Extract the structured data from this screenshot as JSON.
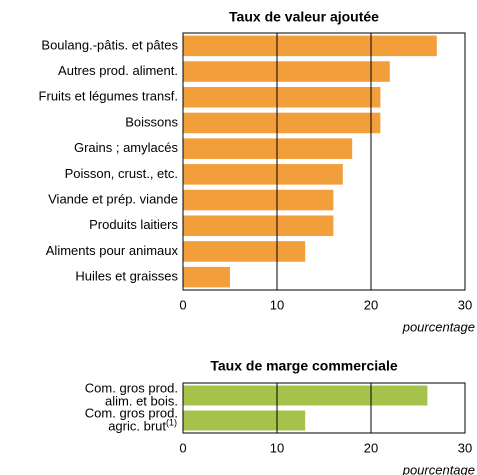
{
  "chart_data": [
    {
      "type": "bar",
      "orientation": "horizontal",
      "title": "Taux de valeur ajoutée",
      "categories": [
        "Boulang.-pâtis. et pâtes",
        "Autres prod. aliment.",
        "Fruits et légumes transf.",
        "Boissons",
        "Grains ; amylacés",
        "Poisson, crust., etc.",
        "Viande et prép. viande",
        "Produits laitiers",
        "Aliments pour animaux",
        "Huiles et graisses"
      ],
      "values": [
        27,
        22,
        21,
        21,
        18,
        17,
        16,
        16,
        13,
        5
      ],
      "color": "#f29e3b",
      "xlim": [
        0,
        30
      ],
      "xticks": [
        0,
        10,
        20,
        30
      ],
      "xlabel": "pourcentage",
      "grid": true
    },
    {
      "type": "bar",
      "orientation": "horizontal",
      "title": "Taux de marge commerciale",
      "categories": [
        [
          "Com. gros prod.",
          "alim. et bois."
        ],
        [
          "Com. gros prod.",
          "agric. brut"
        ]
      ],
      "category_notes": [
        null,
        "(1)"
      ],
      "values": [
        26,
        13
      ],
      "color": "#a5c24b",
      "xlim": [
        0,
        30
      ],
      "xticks": [
        0,
        10,
        20,
        30
      ],
      "xlabel": "pourcentage",
      "grid": true
    }
  ]
}
